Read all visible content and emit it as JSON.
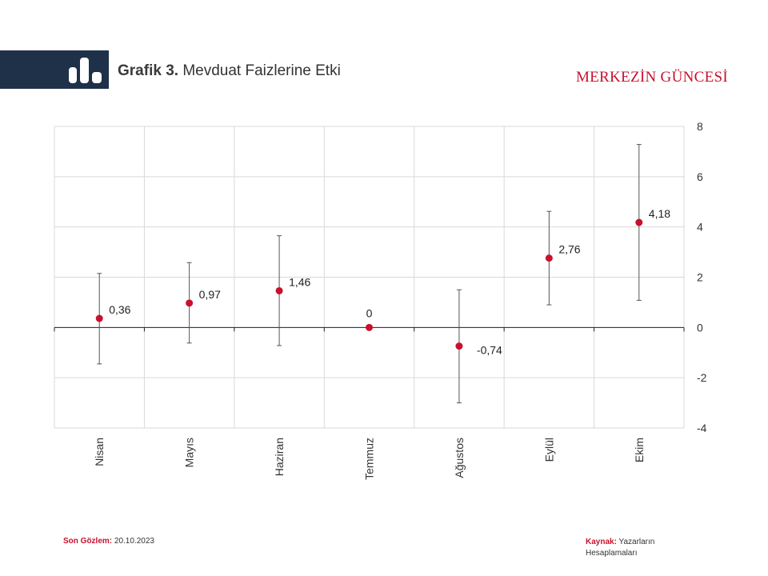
{
  "header": {
    "title_bold": "Grafik 3.",
    "title_rest": "Mevduat Faizlerine Etki",
    "brand": "MERKEZİN GÜNCESİ",
    "logo_icon": "bar-chart-icon"
  },
  "footer": {
    "last_obs_label": "Son Gözlem:",
    "last_obs_value": "20.10.2023",
    "source_label": "Kaynak:",
    "source_value": "Yazarların Hesaplamaları"
  },
  "colors": {
    "header_band": "#1e3148",
    "accent": "#c8102e",
    "point": "#c8102e",
    "error_bar": "#555555",
    "grid": "#d9d9d9"
  },
  "chart_data": {
    "type": "scatter",
    "categories": [
      "Nisan",
      "Mayıs",
      "Haziran",
      "Temmuz",
      "Ağustos",
      "Eylül",
      "Ekim"
    ],
    "values": [
      0.36,
      0.97,
      1.46,
      0,
      -0.74,
      2.76,
      4.18
    ],
    "labels": [
      "0,36",
      "0,97",
      "1,46",
      "0",
      "-0,74",
      "2,76",
      "4,18"
    ],
    "error_low": [
      -1.45,
      -0.62,
      -0.72,
      0,
      -3.0,
      0.9,
      1.08
    ],
    "error_high": [
      2.15,
      2.58,
      3.65,
      0,
      1.5,
      4.62,
      7.28
    ],
    "ylim": [
      -4,
      8
    ],
    "yticks": [
      8,
      6,
      4,
      2,
      0,
      -2,
      -4
    ],
    "ytick_labels": [
      "8",
      "6",
      "4",
      "2",
      "0",
      "-2",
      "-4"
    ],
    "y_axis_side": "right",
    "grid": true,
    "legend": "none"
  }
}
